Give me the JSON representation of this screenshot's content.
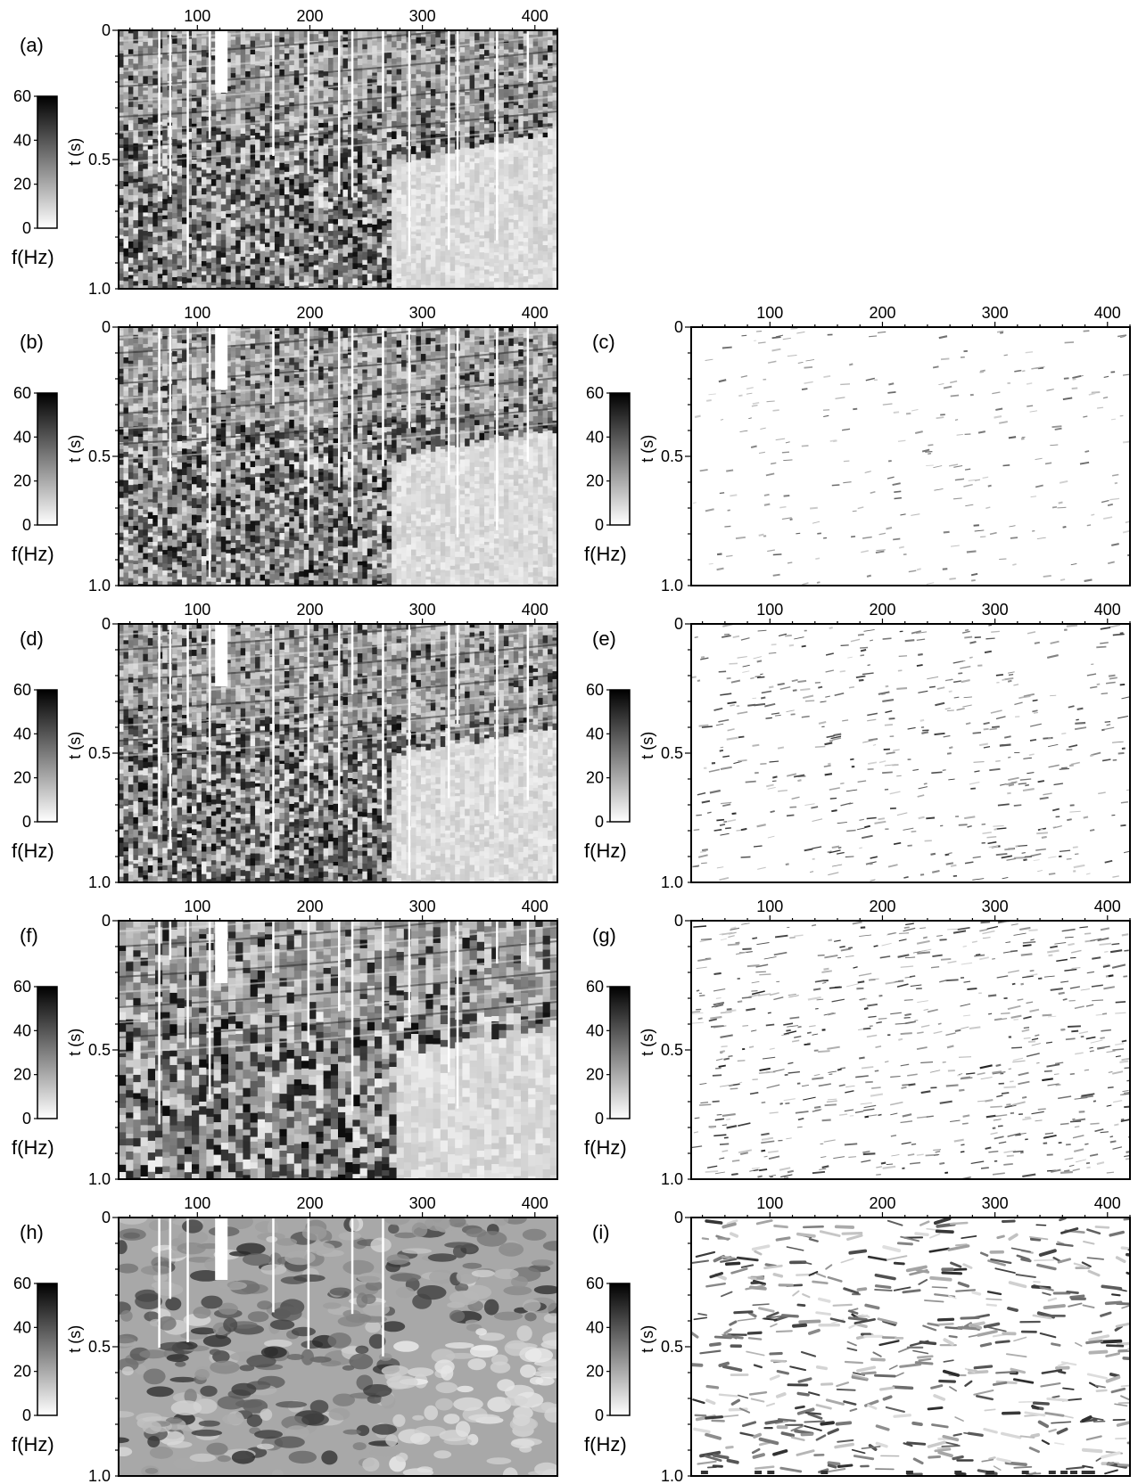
{
  "figure": {
    "colorbar": {
      "label": "f(Hz)",
      "ticks": [
        0,
        20,
        40,
        60
      ],
      "range": [
        0,
        60
      ],
      "colormap": "white-to-black"
    },
    "axes": {
      "x": {
        "ticks": [
          100,
          200,
          300,
          400
        ],
        "range": [
          30,
          420
        ],
        "label": "",
        "position": "top"
      },
      "y": {
        "label": "t (s)",
        "ticks": [
          "0",
          "0.5",
          "1.0"
        ],
        "tick_values": [
          0,
          0.5,
          1.0
        ],
        "range": [
          0,
          1.0
        ]
      }
    }
  },
  "chart_data": [
    {
      "type": "heatmap",
      "panel_label": "(a)",
      "texture": "segmented",
      "column": "left",
      "row": 0
    },
    {
      "type": "heatmap",
      "panel_label": "(b)",
      "texture": "segmented",
      "column": "left",
      "row": 1
    },
    {
      "type": "heatmap",
      "panel_label": "(c)",
      "texture": "sparse-light",
      "column": "right",
      "row": 1
    },
    {
      "type": "heatmap",
      "panel_label": "(d)",
      "texture": "segmented",
      "column": "left",
      "row": 2
    },
    {
      "type": "heatmap",
      "panel_label": "(e)",
      "texture": "light-lines",
      "column": "right",
      "row": 2
    },
    {
      "type": "heatmap",
      "panel_label": "(f)",
      "texture": "segmented-coarse",
      "column": "left",
      "row": 3
    },
    {
      "type": "heatmap",
      "panel_label": "(g)",
      "texture": "medium-lines",
      "column": "right",
      "row": 3
    },
    {
      "type": "heatmap",
      "panel_label": "(h)",
      "texture": "smooth-dark",
      "column": "left",
      "row": 4
    },
    {
      "type": "heatmap",
      "panel_label": "(i)",
      "texture": "smooth-wavy",
      "column": "right",
      "row": 4
    }
  ]
}
